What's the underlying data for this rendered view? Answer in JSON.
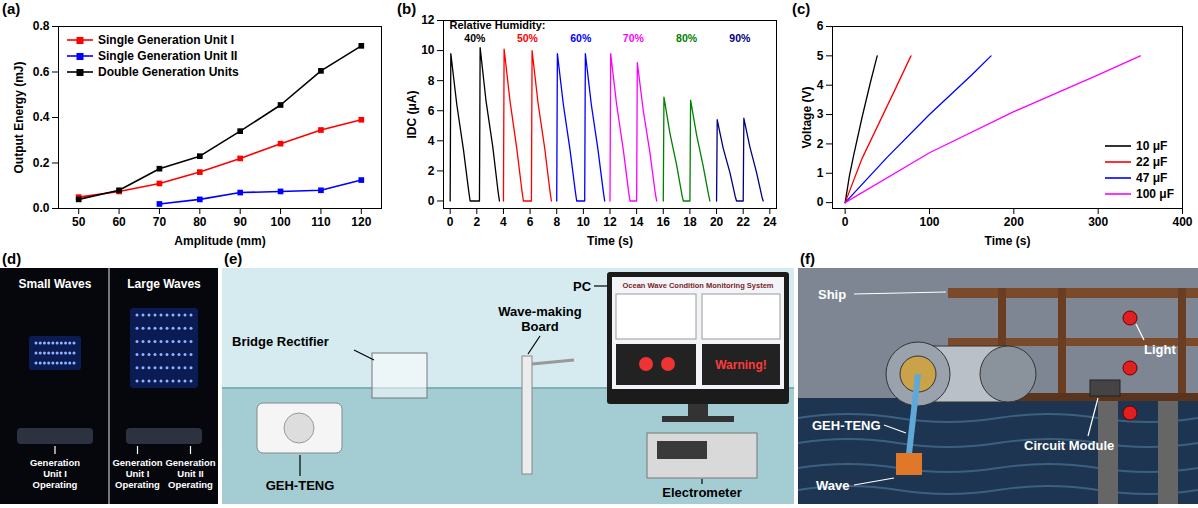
{
  "chart_data": [
    {
      "type": "line",
      "panel_label": "(a)",
      "x_label": "Amplitude (mm)",
      "y_label": "Output Energy (mJ)",
      "x": [
        50,
        60,
        70,
        80,
        90,
        100,
        110,
        120
      ],
      "series": [
        {
          "name": "Single Generation Unit I",
          "color": "#ff0000",
          "marker": "square",
          "values": [
            0.05,
            0.075,
            0.11,
            0.16,
            0.22,
            0.285,
            0.345,
            0.39
          ]
        },
        {
          "name": "Single Generation Unit II",
          "color": "#0000ff",
          "marker": "square",
          "values": [
            null,
            null,
            0.02,
            0.04,
            0.07,
            0.075,
            0.08,
            0.125
          ]
        },
        {
          "name": "Double Generation Units",
          "color": "#000000",
          "marker": "square",
          "values": [
            0.04,
            0.08,
            0.175,
            0.23,
            0.34,
            0.455,
            0.605,
            0.715
          ]
        }
      ],
      "xlim": [
        45,
        125
      ],
      "xticks": [
        50,
        60,
        70,
        80,
        90,
        100,
        110,
        120
      ],
      "ylim": [
        0,
        0.8
      ],
      "yticks": [
        {
          "value": 0,
          "label": "0.0"
        },
        0.2,
        0.4,
        0.6,
        0.8
      ],
      "legend": "upper left",
      "grid": false
    },
    {
      "type": "line",
      "panel_label": "(b)",
      "x_label": "Time (s)",
      "y_label": "IDC (μA)",
      "annotation": "Relative Humidity:",
      "series": [
        {
          "name": "40%",
          "color": "#000000",
          "x": [
            0,
            0.05,
            0.5,
            1.0,
            1.4,
            1.5,
            2.2,
            2.25,
            2.7,
            3.2,
            3.6,
            3.7
          ],
          "values": [
            0,
            9.8,
            6.4,
            3.4,
            0.6,
            0,
            0,
            10.2,
            6.6,
            3.6,
            0.6,
            0
          ]
        },
        {
          "name": "50%",
          "color": "#ff0000",
          "x": [
            4.0,
            4.05,
            4.5,
            5.0,
            5.4,
            5.5,
            6.1,
            6.15,
            6.6,
            7.1,
            7.5,
            7.6
          ],
          "values": [
            0,
            10.1,
            6.6,
            3.5,
            0.6,
            0,
            0,
            10.0,
            6.5,
            3.5,
            0.6,
            0
          ]
        },
        {
          "name": "60%",
          "color": "#0000ff",
          "x": [
            8.0,
            8.05,
            8.5,
            9.0,
            9.4,
            9.5,
            10.1,
            10.15,
            10.6,
            11.1,
            11.5,
            11.6
          ],
          "values": [
            0,
            9.8,
            6.4,
            3.4,
            0.6,
            0,
            0,
            9.8,
            6.4,
            3.4,
            0.6,
            0
          ]
        },
        {
          "name": "70%",
          "color": "#ff00ff",
          "x": [
            12.0,
            12.05,
            12.5,
            13.0,
            13.4,
            13.5,
            14.0,
            14.05,
            14.5,
            15.0,
            15.4,
            15.5
          ],
          "values": [
            0,
            9.8,
            6.4,
            3.4,
            0.6,
            0,
            0,
            9.2,
            6.0,
            3.2,
            0.5,
            0
          ]
        },
        {
          "name": "80%",
          "color": "#008000",
          "x": [
            16.0,
            16.05,
            16.5,
            17.0,
            17.4,
            17.5,
            18.0,
            18.05,
            18.5,
            19.0,
            19.4,
            19.5
          ],
          "values": [
            0,
            6.9,
            4.5,
            2.4,
            0.4,
            0,
            0,
            6.7,
            4.4,
            2.3,
            0.4,
            0
          ]
        },
        {
          "name": "90%",
          "color": "#000080",
          "x": [
            20.0,
            20.05,
            20.5,
            21.0,
            21.4,
            21.5,
            22.0,
            22.05,
            22.5,
            23.0,
            23.4,
            23.5
          ],
          "values": [
            0,
            5.4,
            3.5,
            1.9,
            0.3,
            0,
            0,
            5.5,
            3.6,
            1.9,
            0.3,
            0
          ]
        }
      ],
      "xlim": [
        -0.5,
        24.5
      ],
      "xticks": [
        0,
        2,
        4,
        6,
        8,
        10,
        12,
        14,
        16,
        18,
        20,
        22,
        24
      ],
      "ylim": [
        -0.5,
        12
      ],
      "yticks": [
        0,
        2,
        4,
        6,
        8,
        10,
        12
      ],
      "grid": false
    },
    {
      "type": "line",
      "panel_label": "(c)",
      "x_label": "Time (s)",
      "y_label": "Voltage (V)",
      "series": [
        {
          "name": "10 μF",
          "color": "#000000",
          "x": [
            0,
            5,
            10,
            20,
            30,
            38
          ],
          "values": [
            0,
            0.9,
            1.6,
            2.9,
            4.1,
            5.0
          ]
        },
        {
          "name": "22 μF",
          "color": "#ff0000",
          "x": [
            0,
            20,
            40,
            60,
            78
          ],
          "values": [
            0,
            1.5,
            2.7,
            3.9,
            5.0
          ]
        },
        {
          "name": "47 μF",
          "color": "#0000ff",
          "x": [
            0,
            50,
            100,
            150,
            173
          ],
          "values": [
            0,
            1.55,
            3.0,
            4.35,
            5.0
          ]
        },
        {
          "name": "100 μF",
          "color": "#ff00ff",
          "x": [
            0,
            100,
            200,
            300,
            350
          ],
          "values": [
            0,
            1.7,
            3.1,
            4.35,
            5.0
          ]
        }
      ],
      "xlim": [
        -15,
        400
      ],
      "xticks": [
        0,
        100,
        200,
        300,
        400
      ],
      "ylim": [
        -0.2,
        6
      ],
      "yticks": [
        0,
        1,
        2,
        3,
        4,
        5,
        6
      ],
      "legend": "lower right",
      "grid": false
    }
  ],
  "panels": {
    "d": {
      "panel_label": "(d)",
      "views": [
        {
          "title": "Small Waves",
          "labels": [
            "Generation Unit I Operating"
          ]
        },
        {
          "title": "Large Waves",
          "labels": [
            "Generation Unit I Operating",
            "Generation Unit II Operating"
          ]
        }
      ]
    },
    "e": {
      "panel_label": "(e)",
      "labels": {
        "pc": "PC",
        "rectifier": "Bridge Rectifier",
        "board": "Wave-making Board",
        "teng": "GEH-TENG",
        "meter": "Electrometer"
      },
      "screen": {
        "title": "Ocean Wave Condition Monitoring System",
        "warning": "Warning!"
      }
    },
    "f": {
      "panel_label": "(f)",
      "labels": {
        "ship": "Ship",
        "light": "Light",
        "teng": "GEH-TENG",
        "circuit": "Circuit Module",
        "wave": "Wave"
      }
    }
  }
}
